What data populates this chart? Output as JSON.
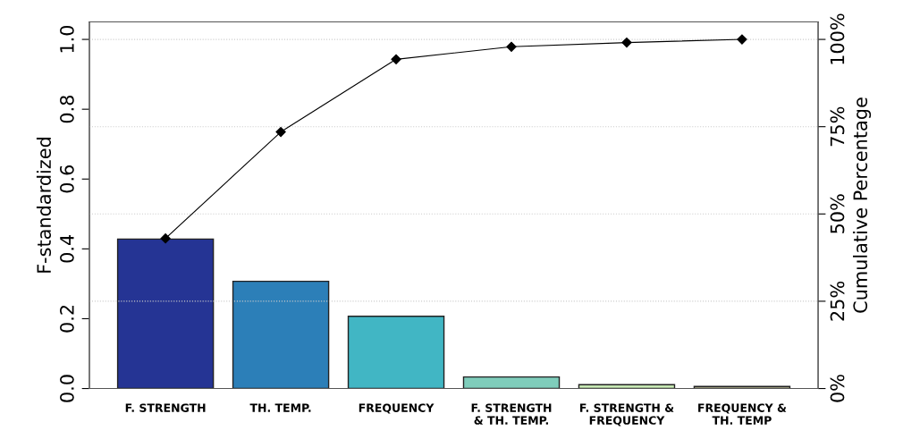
{
  "chart_data": {
    "type": "bar",
    "ylabel": "F-standardized",
    "y2label": "Cumulative Percentage",
    "categories": [
      "F. STRENGTH",
      "TH. TEMP.",
      "FREQUENCY",
      "F. STRENGTH\n& TH. TEMP.",
      "F. STRENGTH &\nFREQUENCY",
      "FREQUENCY &\nTH. TEMP"
    ],
    "series": [
      {
        "values": [
          0.428,
          0.307,
          0.207,
          0.033,
          0.011,
          0.006
        ],
        "colors": [
          "#253494",
          "#2c7fb8",
          "#41b6c4",
          "#7fcdbb",
          "#c7e9b4",
          "#b8b894"
        ]
      },
      {
        "type": "line",
        "axis": "y2",
        "color": "#000000",
        "values": [
          43,
          73.5,
          94.3,
          97.9,
          99.1,
          100
        ]
      }
    ],
    "ylim": [
      0,
      1.05
    ],
    "yticks": [
      {
        "value": 0,
        "label": "0.0"
      },
      0.2,
      0.4,
      0.6,
      0.8,
      {
        "value": 1,
        "label": "1.0"
      }
    ],
    "y2lim": [
      0,
      105
    ],
    "y2ticks": [
      {
        "value": 0,
        "label": "0%"
      },
      {
        "value": 25,
        "label": "25%"
      },
      {
        "value": 50,
        "label": "50%"
      },
      {
        "value": 75,
        "label": "75%"
      },
      {
        "value": 100,
        "label": "100%"
      }
    ],
    "grid": "y2",
    "marker": "diamond",
    "line_style": "solid"
  }
}
